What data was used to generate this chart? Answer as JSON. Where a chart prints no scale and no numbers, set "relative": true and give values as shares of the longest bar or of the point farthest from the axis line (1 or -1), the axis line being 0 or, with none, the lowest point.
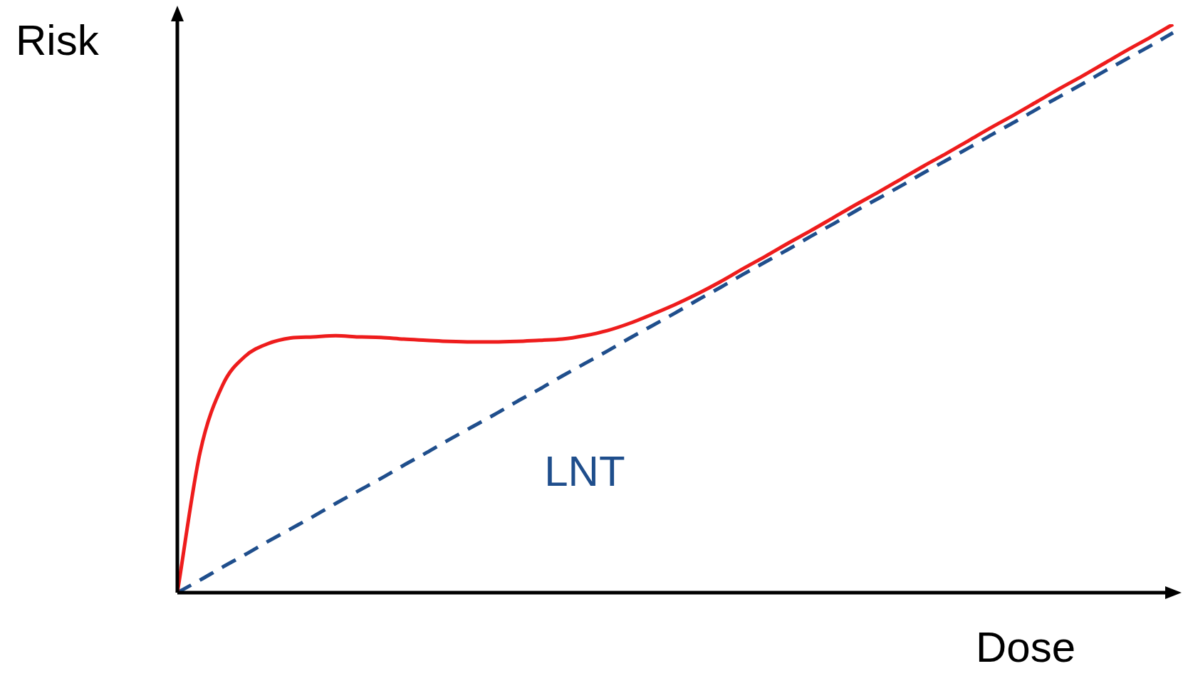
{
  "chart_data": {
    "type": "line",
    "xlabel": "Dose",
    "ylabel": "Risk",
    "relative": true,
    "legend": false,
    "marker": "none",
    "categories": [
      null,
      null,
      null,
      null,
      null,
      null,
      null,
      null,
      null,
      null,
      null,
      null,
      null,
      null,
      null,
      null,
      null,
      null,
      null,
      null,
      null,
      null,
      null,
      null,
      null,
      null,
      null,
      null,
      null,
      null,
      null,
      null,
      null,
      null,
      null,
      null,
      null,
      null,
      null,
      null,
      null,
      null,
      null,
      null,
      null
    ],
    "series": [
      {
        "color": "#ee1c1c",
        "line_style": "solid",
        "values": [
          0,
          0.246,
          0.365,
          0.416,
          0.438,
          0.448,
          0.45,
          0.452,
          0.45,
          0.449,
          0.446,
          0.444,
          0.442,
          0.441,
          0.441,
          0.442,
          0.444,
          0.446,
          0.452,
          0.461,
          0.474,
          0.49,
          0.507,
          0.526,
          0.547,
          0.57,
          0.592,
          0.615,
          0.637,
          0.66,
          0.683,
          0.705,
          0.728,
          0.751,
          0.773,
          0.796,
          0.819,
          0.841,
          0.864,
          0.887,
          0.909,
          0.932,
          0.955,
          0.977,
          1.0
        ]
      },
      {
        "name": "LNT",
        "color": "#1f4e8c",
        "line_style": "dashed",
        "values": [
          0,
          0.022,
          0.045,
          0.067,
          0.09,
          0.112,
          0.134,
          0.157,
          0.179,
          0.201,
          0.224,
          0.246,
          0.269,
          0.291,
          0.313,
          0.336,
          0.358,
          0.381,
          0.403,
          0.425,
          0.448,
          0.47,
          0.492,
          0.515,
          0.537,
          0.56,
          0.582,
          0.604,
          0.627,
          0.649,
          0.672,
          0.694,
          0.716,
          0.739,
          0.761,
          0.783,
          0.806,
          0.828,
          0.851,
          0.873,
          0.895,
          0.918,
          0.94,
          0.962,
          0.985
        ]
      }
    ]
  }
}
